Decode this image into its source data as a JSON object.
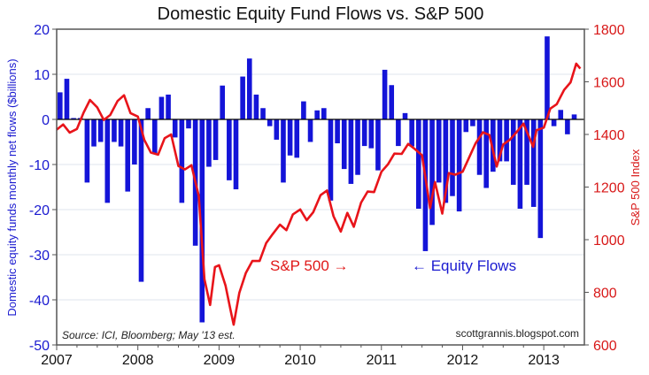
{
  "chart_data": {
    "type": "bar+line",
    "title": "Domestic Equity Fund Flows vs. S&P 500",
    "ylabel_left": "Domestic equity funds monthly net flows ($billions)",
    "ylabel_right": "S&P 500 Index",
    "xlim": [
      2007,
      2013.5
    ],
    "ylim_left": [
      -50,
      20
    ],
    "ylim_right": [
      600,
      1800
    ],
    "x_ticks": [
      "2007",
      "2008",
      "2009",
      "2010",
      "2011",
      "2012",
      "2013"
    ],
    "y_ticks_left": [
      "20",
      "10",
      "0",
      "-10",
      "-20",
      "-30",
      "-40",
      "-50"
    ],
    "y_ticks_right": [
      "1800",
      "1600",
      "1400",
      "1200",
      "1000",
      "800",
      "600"
    ],
    "grid": true,
    "annotations": {
      "sp500": "S&P 500 →",
      "flows": "← Equity Flows"
    },
    "source": "Source: ICI, Bloomberg; May '13 est.",
    "watermark": "scottgrannis.blogspot.com",
    "colors": {
      "flows": "#1414d8",
      "sp500": "#e8141a"
    },
    "series": [
      {
        "name": "Equity Flows",
        "axis": "left",
        "kind": "bar",
        "start": "2007-01",
        "frequency": "monthly",
        "values": [
          6,
          9,
          0.3,
          0.3,
          -14,
          -6,
          -5,
          -18.5,
          -5,
          -6,
          -16,
          -10,
          -36,
          2.5,
          -7.5,
          5,
          5.5,
          -4,
          -18.5,
          -2,
          -28,
          -45,
          -10.5,
          -9,
          7.5,
          -13.5,
          -15.5,
          9.5,
          13.5,
          5.5,
          2.5,
          -1.5,
          -4.5,
          -14,
          -8,
          -8.5,
          4,
          -5,
          2,
          2.5,
          -18,
          -5.3,
          -11,
          -14.3,
          -12.3,
          -5.9,
          -6.4,
          -11.3,
          11,
          7.6,
          -5.9,
          1.4,
          -6,
          -19.8,
          -29.2,
          -23.4,
          -14,
          -18.5,
          -17,
          -20.4,
          -2.8,
          -1.5,
          -12.3,
          -15.2,
          -11.6,
          -9.3,
          -9.3,
          -14.5,
          -19.8,
          -14.5,
          -19.4,
          -26.3,
          18.4,
          -1.5,
          2.1,
          -3.3,
          1.1
        ]
      },
      {
        "name": "S&P 500",
        "axis": "right",
        "kind": "line",
        "x": [
          2007.0,
          2007.08,
          2007.16,
          2007.25,
          2007.33,
          2007.41,
          2007.5,
          2007.58,
          2007.66,
          2007.75,
          2007.83,
          2007.91,
          2008.0,
          2008.08,
          2008.16,
          2008.25,
          2008.33,
          2008.41,
          2008.5,
          2008.58,
          2008.66,
          2008.75,
          2008.82,
          2008.89,
          2008.95,
          2009.0,
          2009.08,
          2009.14,
          2009.18,
          2009.25,
          2009.33,
          2009.41,
          2009.5,
          2009.58,
          2009.66,
          2009.75,
          2009.83,
          2009.91,
          2010.0,
          2010.08,
          2010.16,
          2010.25,
          2010.33,
          2010.41,
          2010.5,
          2010.58,
          2010.66,
          2010.75,
          2010.83,
          2010.91,
          2011.0,
          2011.08,
          2011.16,
          2011.25,
          2011.33,
          2011.41,
          2011.5,
          2011.6,
          2011.66,
          2011.75,
          2011.83,
          2011.91,
          2012.0,
          2012.08,
          2012.16,
          2012.25,
          2012.33,
          2012.42,
          2012.5,
          2012.58,
          2012.66,
          2012.75,
          2012.87,
          2012.91,
          2013.0,
          2013.08,
          2013.16,
          2013.25,
          2013.33,
          2013.4,
          2013.45
        ],
        "values": [
          1418,
          1438,
          1407,
          1421,
          1482,
          1531,
          1503,
          1455,
          1474,
          1527,
          1549,
          1481,
          1468,
          1379,
          1331,
          1323,
          1386,
          1400,
          1280,
          1267,
          1283,
          1166,
          850,
          752,
          896,
          903,
          826,
          735,
          677,
          798,
          873,
          919,
          919,
          987,
          1021,
          1057,
          1036,
          1096,
          1115,
          1074,
          1104,
          1169,
          1187,
          1089,
          1031,
          1102,
          1049,
          1141,
          1183,
          1181,
          1258,
          1286,
          1327,
          1326,
          1364,
          1345,
          1321,
          1120,
          1219,
          1099,
          1253,
          1247,
          1258,
          1312,
          1366,
          1408,
          1398,
          1278,
          1362,
          1379,
          1407,
          1441,
          1353,
          1416,
          1426,
          1498,
          1515,
          1569,
          1598,
          1669,
          1650
        ]
      }
    ]
  }
}
